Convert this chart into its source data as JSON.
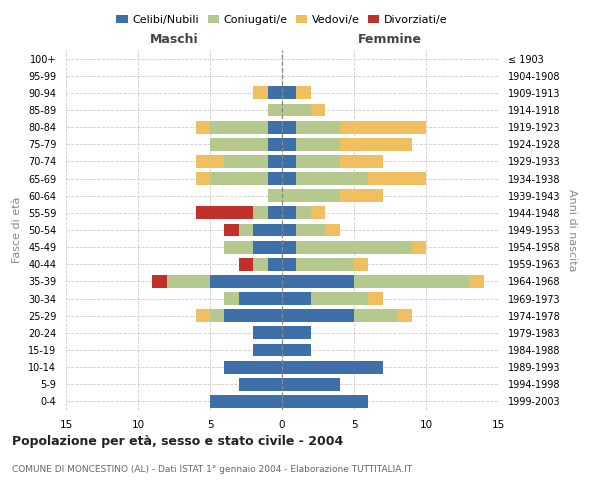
{
  "age_groups": [
    "0-4",
    "5-9",
    "10-14",
    "15-19",
    "20-24",
    "25-29",
    "30-34",
    "35-39",
    "40-44",
    "45-49",
    "50-54",
    "55-59",
    "60-64",
    "65-69",
    "70-74",
    "75-79",
    "80-84",
    "85-89",
    "90-94",
    "95-99",
    "100+"
  ],
  "birth_years": [
    "1999-2003",
    "1994-1998",
    "1989-1993",
    "1984-1988",
    "1979-1983",
    "1974-1978",
    "1969-1973",
    "1964-1968",
    "1959-1963",
    "1954-1958",
    "1949-1953",
    "1944-1948",
    "1939-1943",
    "1934-1938",
    "1929-1933",
    "1924-1928",
    "1919-1923",
    "1914-1918",
    "1909-1913",
    "1904-1908",
    "≤ 1903"
  ],
  "maschi": {
    "celibi": [
      5,
      3,
      4,
      2,
      2,
      4,
      3,
      5,
      1,
      2,
      2,
      1,
      0,
      1,
      1,
      1,
      1,
      0,
      1,
      0,
      0
    ],
    "coniugati": [
      0,
      0,
      0,
      0,
      0,
      1,
      1,
      3,
      1,
      2,
      1,
      1,
      1,
      4,
      3,
      4,
      4,
      1,
      0,
      0,
      0
    ],
    "vedovi": [
      0,
      0,
      0,
      0,
      0,
      1,
      0,
      0,
      0,
      0,
      0,
      0,
      0,
      1,
      2,
      0,
      1,
      0,
      1,
      0,
      0
    ],
    "divorziati": [
      0,
      0,
      0,
      0,
      0,
      0,
      0,
      1,
      1,
      0,
      1,
      4,
      0,
      0,
      0,
      0,
      0,
      0,
      0,
      0,
      0
    ]
  },
  "femmine": {
    "nubili": [
      6,
      4,
      7,
      2,
      2,
      5,
      2,
      5,
      1,
      1,
      1,
      1,
      0,
      1,
      1,
      1,
      1,
      0,
      1,
      0,
      0
    ],
    "coniugate": [
      0,
      0,
      0,
      0,
      0,
      3,
      4,
      8,
      4,
      8,
      2,
      1,
      4,
      5,
      3,
      3,
      3,
      2,
      0,
      0,
      0
    ],
    "vedove": [
      0,
      0,
      0,
      0,
      0,
      1,
      1,
      1,
      1,
      1,
      1,
      1,
      3,
      4,
      3,
      5,
      6,
      1,
      1,
      0,
      0
    ],
    "divorziate": [
      0,
      0,
      0,
      0,
      0,
      0,
      0,
      0,
      0,
      0,
      0,
      0,
      0,
      0,
      0,
      0,
      0,
      0,
      0,
      0,
      0
    ]
  },
  "color_celibi": "#3d6fa8",
  "color_coniugati": "#b5c98e",
  "color_vedovi": "#f0c060",
  "color_divorziati": "#c0312b",
  "xlim": 15,
  "title": "Popolazione per età, sesso e stato civile - 2004",
  "subtitle": "COMUNE DI MONCESTINO (AL) - Dati ISTAT 1° gennaio 2004 - Elaborazione TUTTITALIA.IT",
  "ylabel_left": "Fasce di età",
  "ylabel_right": "Anni di nascita",
  "xlabel_left": "Maschi",
  "xlabel_right": "Femmine"
}
